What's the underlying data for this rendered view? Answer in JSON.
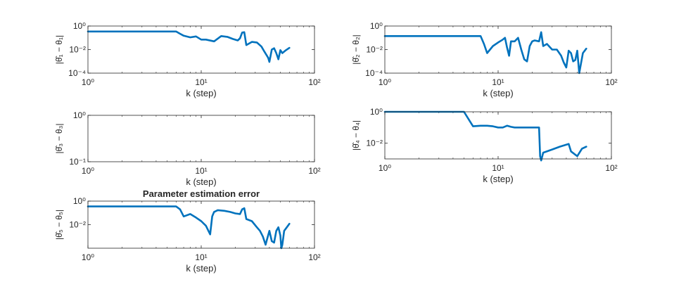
{
  "chart_data": [
    {
      "type": "line",
      "xscale": "log",
      "yscale": "log",
      "xlim": [
        1,
        100
      ],
      "ylim": [
        0.0001,
        1
      ],
      "xticks": [
        1,
        10,
        100
      ],
      "xtick_labels": [
        "10^0",
        "10^1",
        "10^2"
      ],
      "yticks": [
        0.0001,
        0.01,
        1
      ],
      "ytick_labels": [
        "10^-4",
        "10^-2",
        "10^0"
      ],
      "title": "",
      "xlabel": "k (step)",
      "ylabel": "|θ̂₁ − θ₁|",
      "series": [
        {
          "color": "#0072BD",
          "x": [
            1,
            6,
            6.5,
            7,
            8,
            9,
            10,
            11,
            13,
            15,
            17,
            19,
            21,
            22,
            23,
            24,
            25,
            28,
            31,
            34,
            36,
            39,
            40,
            42,
            44,
            46,
            48,
            50,
            52,
            56,
            60
          ],
          "y": [
            0.34,
            0.34,
            0.22,
            0.15,
            0.11,
            0.13,
            0.07,
            0.07,
            0.05,
            0.14,
            0.12,
            0.08,
            0.06,
            0.09,
            0.28,
            0.3,
            0.024,
            0.045,
            0.04,
            0.018,
            0.007,
            0.002,
            0.0009,
            0.01,
            0.013,
            0.005,
            0.0015,
            0.009,
            0.005,
            0.009,
            0.014
          ]
        }
      ]
    },
    {
      "type": "line",
      "xscale": "log",
      "yscale": "log",
      "xlim": [
        1,
        100
      ],
      "ylim": [
        0.0001,
        1
      ],
      "xticks": [
        1,
        10,
        100
      ],
      "xtick_labels": [
        "10^0",
        "10^1",
        "10^2"
      ],
      "yticks": [
        0.0001,
        0.01,
        1
      ],
      "ytick_labels": [
        "10^-4",
        "10^-2",
        "10^0"
      ],
      "title": "",
      "xlabel": "k (step)",
      "ylabel": "|θ̂₂ − θ₂|",
      "series": [
        {
          "color": "#0072BD",
          "x": [
            1,
            7,
            7.5,
            8,
            9,
            10,
            11,
            11.5,
            12,
            12.5,
            13,
            14,
            15,
            16,
            17,
            18,
            19,
            20,
            21,
            23,
            24,
            25,
            27,
            30,
            33,
            36,
            38,
            40,
            42,
            44,
            46,
            48,
            50,
            52,
            56,
            60
          ],
          "y": [
            0.14,
            0.14,
            0.03,
            0.005,
            0.02,
            0.04,
            0.07,
            0.1,
            0.015,
            0.003,
            0.05,
            0.05,
            0.1,
            0.01,
            0.0015,
            0.001,
            0.02,
            0.05,
            0.06,
            0.05,
            0.3,
            0.02,
            0.03,
            0.01,
            0.01,
            0.003,
            0.0008,
            0.0003,
            0.008,
            0.005,
            0.001,
            0.0013,
            0.008,
            0.0001,
            0.005,
            0.012
          ]
        }
      ]
    },
    {
      "type": "line",
      "xscale": "log",
      "yscale": "log",
      "xlim": [
        1,
        100
      ],
      "ylim": [
        0.1,
        1
      ],
      "xticks": [
        1,
        10,
        100
      ],
      "xtick_labels": [
        "10^0",
        "10^1",
        "10^2"
      ],
      "yticks": [
        0.1,
        1
      ],
      "ytick_labels": [
        "10^-1",
        "10^0"
      ],
      "title": "",
      "xlabel": "k (step)",
      "ylabel": "|θ̂₃ − θ₃|",
      "series": []
    },
    {
      "type": "line",
      "xscale": "log",
      "yscale": "log",
      "xlim": [
        1,
        100
      ],
      "ylim": [
        0.001,
        1
      ],
      "xticks": [
        1,
        10,
        100
      ],
      "xtick_labels": [
        "10^0",
        "10^1",
        "10^2"
      ],
      "yticks": [
        0.01,
        1
      ],
      "ytick_labels": [
        "10^-2",
        "10^0"
      ],
      "title": "",
      "xlabel": "k (step)",
      "ylabel": "|θ̂₄ − θ₄|",
      "series": [
        {
          "color": "#0072BD",
          "x": [
            1,
            5,
            6,
            7,
            8,
            9,
            10,
            11,
            12,
            13,
            14,
            16,
            18,
            20,
            22,
            23,
            23.5,
            24,
            25,
            30,
            35,
            40,
            42,
            44,
            50,
            55,
            60
          ],
          "y": [
            1,
            1,
            0.12,
            0.13,
            0.13,
            0.12,
            0.1,
            0.1,
            0.13,
            0.11,
            0.1,
            0.1,
            0.1,
            0.1,
            0.1,
            0.1,
            0.0015,
            0.0008,
            0.0025,
            0.004,
            0.006,
            0.008,
            0.009,
            0.003,
            0.0015,
            0.0045,
            0.006
          ]
        }
      ]
    },
    {
      "type": "line",
      "xscale": "log",
      "yscale": "log",
      "xlim": [
        1,
        100
      ],
      "ylim": [
        0.0001,
        1
      ],
      "xticks": [
        1,
        10,
        100
      ],
      "xtick_labels": [
        "10^0",
        "10^1",
        "10^2"
      ],
      "yticks": [
        0.01,
        1
      ],
      "ytick_labels": [
        "10^-2",
        "10^0"
      ],
      "title": "Parameter estimation error",
      "xlabel": "k (step)",
      "ylabel": "|θ̂₅ − θ₅|",
      "series": [
        {
          "color": "#0072BD",
          "x": [
            1,
            6,
            6.5,
            7,
            8,
            9,
            10,
            11,
            12,
            12.5,
            13,
            14,
            16,
            18,
            20,
            22,
            23,
            24,
            25,
            28,
            31,
            33,
            35,
            37,
            38,
            40,
            42,
            44,
            46,
            48,
            50,
            51,
            52,
            54,
            57,
            60
          ],
          "y": [
            0.35,
            0.35,
            0.2,
            0.05,
            0.08,
            0.04,
            0.02,
            0.008,
            0.0015,
            0.05,
            0.12,
            0.17,
            0.15,
            0.12,
            0.09,
            0.08,
            0.2,
            0.25,
            0.03,
            0.02,
            0.006,
            0.003,
            0.001,
            0.0002,
            0.0005,
            0.003,
            0.0004,
            0.0003,
            0.003,
            0.006,
            0.0012,
            0.0001,
            0.0002,
            0.003,
            0.006,
            0.012
          ]
        }
      ]
    }
  ]
}
